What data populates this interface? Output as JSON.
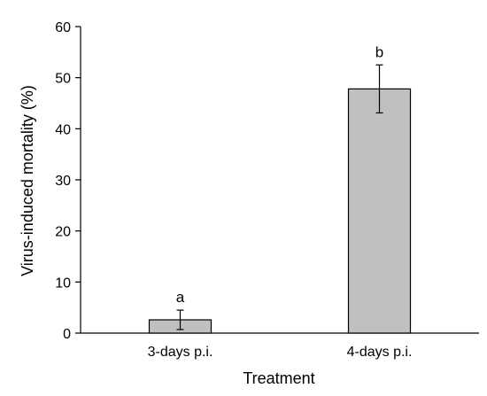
{
  "chart_data": {
    "type": "bar",
    "title": "",
    "xlabel": "Treatment",
    "ylabel": "Virus-induced mortality (%)",
    "ylim": [
      0,
      60
    ],
    "yticks": [
      0,
      10,
      20,
      30,
      40,
      50,
      60
    ],
    "categories": [
      "3-days p.i.",
      "4-days p.i."
    ],
    "values": [
      2.6,
      47.8
    ],
    "error": [
      1.9,
      4.7
    ],
    "significance_labels": [
      "a",
      "b"
    ],
    "grid": false,
    "legend": "none",
    "bar_color": "#c0c0c0",
    "bar_edge_color": "#000000"
  }
}
